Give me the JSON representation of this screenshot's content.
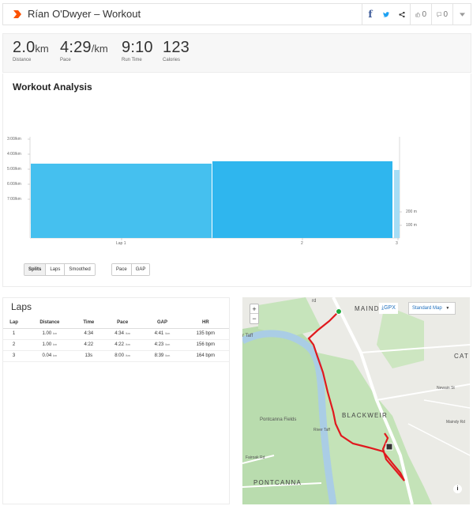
{
  "header": {
    "title": "Rían O'Dwyer – Workout",
    "likes": "0",
    "comments": "0"
  },
  "stats": [
    {
      "value": "2.0",
      "unit": "km",
      "label": "Distance"
    },
    {
      "value": "4:29",
      "unit": "/km",
      "label": "Pace"
    },
    {
      "value": "9:10",
      "unit": "",
      "label": "Run Time"
    },
    {
      "value": "123",
      "unit": "",
      "label": "Calories"
    }
  ],
  "analysis": {
    "title": "Workout Analysis",
    "buttons_group1": [
      "Splits",
      "Laps",
      "Smoothed"
    ],
    "buttons_group2": [
      "Pace",
      "GAP"
    ]
  },
  "chart_data": {
    "type": "bar",
    "y_axis_pace_labels": [
      "3:00/km",
      "4:00/km",
      "5:00/km",
      "6:00/km",
      "7:00/km"
    ],
    "y_axis_elevation_labels": [
      "200 m",
      "100 m"
    ],
    "categories": [
      "Lap 1",
      "2",
      "3"
    ],
    "values_pace_seconds": [
      274,
      262,
      480
    ],
    "bar_widths_relative": [
      1.0,
      0.96,
      0.04
    ],
    "colors": {
      "bar": "#3dbdf0",
      "bar_dark": "#2bb5ee",
      "elevation": "#e8f0f5"
    }
  },
  "laps": {
    "title": "Laps",
    "headers": [
      "Lap",
      "Distance",
      "Time",
      "Pace",
      "GAP",
      "HR"
    ],
    "rows": [
      {
        "lap": "1",
        "distance": "1.00",
        "distance_unit": "km",
        "time": "4:34",
        "pace": "4:34",
        "pace_unit": "/km",
        "gap": "4:41",
        "gap_unit": "/km",
        "hr": "135 bpm"
      },
      {
        "lap": "2",
        "distance": "1.00",
        "distance_unit": "km",
        "time": "4:22",
        "pace": "4:22",
        "pace_unit": "/km",
        "gap": "4:23",
        "gap_unit": "/km",
        "hr": "156 bpm"
      },
      {
        "lap": "3",
        "distance": "0.04",
        "distance_unit": "km",
        "time": "13s",
        "pace": "8:00",
        "pace_unit": "/km",
        "gap": "8:39",
        "gap_unit": "/km",
        "hr": "164 bpm"
      }
    ]
  },
  "map": {
    "gpx_label": "GPX",
    "map_type": "Standard Map",
    "labels": {
      "maindy": "MAINDY",
      "cathays": "CAT",
      "blackweir": "BLACKWEIR",
      "pontcanna_fields": "Pontcanna Fields",
      "pontcanna": "PONTCANNA",
      "river_taff": "River Taff",
      "river_taff_top": "r Taff",
      "fairoak": "Fairoak Rd",
      "newain": "Newain St",
      "maindy_rd": "Maindy Rd",
      "rd_top": "rd"
    }
  }
}
